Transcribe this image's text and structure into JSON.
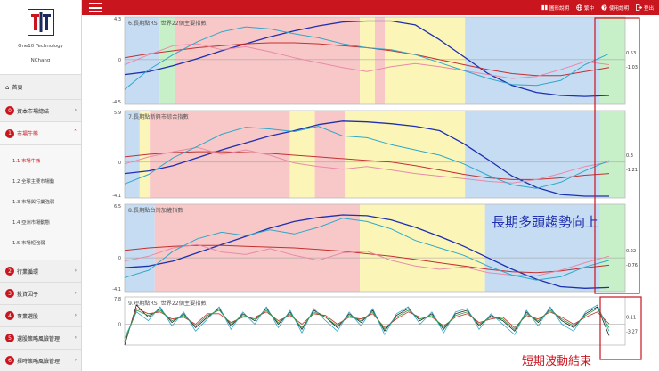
{
  "sidebar": {
    "brand": "One10 Technology",
    "user": "NChang",
    "home": "首頁",
    "items": [
      {
        "num": "0",
        "label": "資本市場總結",
        "chev": "›"
      },
      {
        "num": "1",
        "label": "市場牛熊",
        "chev": "˄"
      },
      {
        "num": "2",
        "label": "行業循環",
        "chev": "›"
      },
      {
        "num": "3",
        "label": "投資因子",
        "chev": "›"
      },
      {
        "num": "4",
        "label": "專業選股",
        "chev": "›"
      },
      {
        "num": "5",
        "label": "選股策略風險管理",
        "chev": "›"
      },
      {
        "num": "6",
        "label": "擇時策略風險管理",
        "chev": "›"
      }
    ],
    "sub_items": [
      "1.1 市場牛熊",
      "1.2 全球主要市場動",
      "1.3 市場與行業強弱",
      "1.4 亞洲市場動態",
      "1.5 市場短強弱"
    ]
  },
  "topbar": {
    "links": [
      "圖形說明",
      "繁中",
      "使用說明",
      "登出"
    ]
  },
  "annotations": {
    "long_term": "長期多頭趨勢向上",
    "short_term": "短期波動結束"
  },
  "colors": {
    "accent": "#c9151e",
    "zone_red": "#f8c8c8",
    "zone_yellow": "#fbf6b8",
    "zone_green": "#c8f0c8",
    "zone_blue": "#c6dcf2",
    "line_blue": "#1f2fb0",
    "line_red": "#c43030",
    "line_pink": "#e88aa8",
    "line_cyan": "#2fa8c8"
  },
  "chart_data": [
    {
      "type": "line",
      "title": "6.長期點RST世界22個主要指數",
      "ylim": [
        -4.5,
        4.3
      ],
      "ytick_labels": [
        "4.3",
        "0",
        "-4.5"
      ],
      "end_labels": [
        "0.53",
        "-1.03"
      ],
      "zones": [
        {
          "x0": 0,
          "x1": 0.07,
          "color": "blue"
        },
        {
          "x0": 0.07,
          "x1": 0.1,
          "color": "green"
        },
        {
          "x0": 0.1,
          "x1": 0.47,
          "color": "red"
        },
        {
          "x0": 0.47,
          "x1": 0.5,
          "color": "yellow"
        },
        {
          "x0": 0.5,
          "x1": 0.52,
          "color": "red"
        },
        {
          "x0": 0.52,
          "x1": 0.68,
          "color": "yellow"
        },
        {
          "x0": 0.68,
          "x1": 0.95,
          "color": "blue"
        },
        {
          "x0": 0.95,
          "x1": 1.0,
          "color": "green"
        }
      ],
      "series": [
        {
          "color": "blue",
          "values": [
            -1.5,
            -1.2,
            -0.6,
            0.1,
            0.9,
            1.6,
            2.3,
            2.9,
            3.4,
            3.8,
            3.9,
            3.9,
            3.5,
            2.0,
            0.3,
            -1.4,
            -2.6,
            -3.3,
            -3.6,
            -3.7,
            -3.6
          ]
        },
        {
          "color": "red",
          "values": [
            0.2,
            0.6,
            0.9,
            1.2,
            1.4,
            1.6,
            1.7,
            1.7,
            1.6,
            1.4,
            1.2,
            0.9,
            0.5,
            0.0,
            -0.5,
            -1.0,
            -1.4,
            -1.6,
            -1.6,
            -1.2,
            -0.8
          ]
        },
        {
          "color": "pink",
          "values": [
            -0.5,
            0.5,
            1.4,
            1.6,
            1.0,
            1.3,
            0.8,
            0.2,
            -0.3,
            -0.8,
            -1.2,
            -0.7,
            -0.4,
            -0.7,
            -1.1,
            -1.5,
            -1.9,
            -1.7,
            -1.0,
            -0.2,
            -0.5
          ]
        },
        {
          "color": "cyan",
          "values": [
            -3.0,
            -1.0,
            0.5,
            1.8,
            2.8,
            3.3,
            3.1,
            2.6,
            2.2,
            1.6,
            1.2,
            1.0,
            0.5,
            -0.3,
            -1.1,
            -1.9,
            -2.5,
            -2.6,
            -2.1,
            -0.5,
            0.6
          ]
        }
      ]
    },
    {
      "type": "line",
      "title": "7.長期點新興市綜合指數",
      "ylim": [
        -4.1,
        5.9
      ],
      "ytick_labels": [
        "5.9",
        "0",
        "-4.1"
      ],
      "end_labels": [
        "0.3",
        "-1.21"
      ],
      "zones": [
        {
          "x0": 0,
          "x1": 0.03,
          "color": "blue"
        },
        {
          "x0": 0.03,
          "x1": 0.05,
          "color": "yellow"
        },
        {
          "x0": 0.05,
          "x1": 0.33,
          "color": "red"
        },
        {
          "x0": 0.33,
          "x1": 0.38,
          "color": "yellow"
        },
        {
          "x0": 0.38,
          "x1": 0.44,
          "color": "red"
        },
        {
          "x0": 0.44,
          "x1": 0.68,
          "color": "yellow"
        },
        {
          "x0": 0.68,
          "x1": 0.95,
          "color": "blue"
        },
        {
          "x0": 0.95,
          "x1": 1.0,
          "color": "green"
        }
      ],
      "series": [
        {
          "color": "blue",
          "values": [
            -1.3,
            -1.0,
            -0.4,
            0.5,
            1.4,
            2.2,
            3.0,
            3.6,
            4.3,
            4.7,
            4.6,
            4.4,
            4.1,
            3.6,
            2.1,
            0.3,
            -1.6,
            -2.9,
            -3.7,
            -3.9,
            -3.9
          ]
        },
        {
          "color": "red",
          "values": [
            0.6,
            0.9,
            1.1,
            1.2,
            1.2,
            1.1,
            1.0,
            0.8,
            0.6,
            0.4,
            0.2,
            0.0,
            -0.4,
            -0.9,
            -1.4,
            -1.8,
            -2.0,
            -2.0,
            -1.8,
            -1.5,
            -1.3
          ]
        },
        {
          "color": "pink",
          "values": [
            -0.2,
            0.6,
            1.2,
            1.7,
            0.9,
            1.4,
            0.8,
            -0.1,
            -0.5,
            -0.8,
            -0.5,
            -0.9,
            -1.3,
            -1.6,
            -1.9,
            -2.2,
            -2.4,
            -2.0,
            -1.3,
            -0.5,
            0.0
          ]
        },
        {
          "color": "cyan",
          "values": [
            -2.5,
            -1.4,
            0.5,
            1.8,
            3.2,
            4.0,
            3.8,
            3.5,
            4.1,
            3.0,
            2.8,
            2.0,
            1.4,
            0.8,
            -0.2,
            -1.5,
            -2.6,
            -3.0,
            -2.3,
            -1.0,
            0.2
          ]
        }
      ]
    },
    {
      "type": "line",
      "title": "8.長期點台灣加權指數",
      "ylim": [
        -4.1,
        6.5
      ],
      "ytick_labels": [
        "6.5",
        "0",
        "-4.1"
      ],
      "end_labels": [
        "0.22",
        "-0.76"
      ],
      "zones": [
        {
          "x0": 0,
          "x1": 0.06,
          "color": "blue"
        },
        {
          "x0": 0.06,
          "x1": 0.47,
          "color": "red"
        },
        {
          "x0": 0.47,
          "x1": 0.72,
          "color": "yellow"
        },
        {
          "x0": 0.72,
          "x1": 0.95,
          "color": "blue"
        },
        {
          "x0": 0.95,
          "x1": 1.0,
          "color": "green"
        }
      ],
      "series": [
        {
          "color": "blue",
          "values": [
            -1.2,
            -1.0,
            -0.4,
            0.6,
            1.6,
            2.6,
            3.6,
            4.4,
            4.9,
            5.2,
            5.1,
            4.6,
            3.7,
            2.6,
            1.4,
            0.0,
            -1.4,
            -2.6,
            -3.5,
            -3.7,
            -3.6
          ]
        },
        {
          "color": "red",
          "values": [
            0.9,
            1.2,
            1.4,
            1.5,
            1.5,
            1.4,
            1.3,
            1.2,
            1.0,
            0.8,
            0.5,
            0.2,
            -0.2,
            -0.6,
            -1.0,
            -1.4,
            -1.7,
            -1.8,
            -1.6,
            -1.2,
            -0.9
          ]
        },
        {
          "color": "pink",
          "values": [
            -0.4,
            0.2,
            1.2,
            1.6,
            0.7,
            0.4,
            1.1,
            0.3,
            -0.3,
            0.6,
            0.8,
            -0.3,
            -1.0,
            -1.4,
            -1.1,
            -1.8,
            -2.1,
            -2.2,
            -1.5,
            -0.6,
            0.2
          ]
        },
        {
          "color": "cyan",
          "values": [
            -2.4,
            -1.5,
            0.8,
            2.3,
            3.1,
            2.7,
            3.4,
            2.9,
            3.7,
            4.8,
            4.4,
            3.5,
            2.1,
            1.2,
            0.3,
            -1.0,
            -2.1,
            -2.7,
            -2.3,
            -1.1,
            -0.3
          ]
        }
      ]
    },
    {
      "type": "line",
      "title": "9.短期點RST世界22個主要指數",
      "ylim": [
        -6.0,
        7.8
      ],
      "ytick_labels": [
        "7.8",
        "0"
      ],
      "end_labels": [
        "0.11",
        "-3.27"
      ],
      "series": [
        {
          "color": "black",
          "values": [
            -6,
            5.5,
            2.0,
            4.5,
            0.5,
            3.0,
            -1.0,
            2.0,
            4.5,
            -0.5,
            3.0,
            1.0,
            4.5,
            0.0,
            3.5,
            -1.5,
            4.0,
            2.0,
            -1.0,
            3.0,
            0.5,
            4.0,
            -2.0,
            2.5,
            4.5,
            1.0,
            3.0,
            -1.5,
            3.0,
            4.0,
            -0.5,
            2.5,
            1.0,
            -2.0,
            3.5,
            0.5,
            4.5,
            1.0,
            -1.0,
            3.0,
            5.0,
            -3.3
          ]
        },
        {
          "color": "red",
          "values": [
            -5,
            4.5,
            3.0,
            3.5,
            1.5,
            2.0,
            0.0,
            3.0,
            3.0,
            0.5,
            2.0,
            2.0,
            3.5,
            1.0,
            2.5,
            0.0,
            3.0,
            2.5,
            0.0,
            2.0,
            1.5,
            3.0,
            -1.0,
            1.5,
            3.5,
            2.0,
            2.0,
            -0.5,
            2.0,
            3.0,
            0.5,
            1.5,
            2.0,
            -1.0,
            2.5,
            1.5,
            3.5,
            2.0,
            0.0,
            2.0,
            3.5,
            0.1
          ]
        },
        {
          "color": "cyan",
          "values": [
            -4,
            3.5,
            1.0,
            5.0,
            -0.5,
            3.5,
            -2.0,
            1.5,
            5.0,
            -1.5,
            3.5,
            0.0,
            5.0,
            -1.0,
            4.0,
            -2.5,
            4.5,
            1.0,
            -2.0,
            3.5,
            -0.5,
            4.5,
            -3.0,
            3.0,
            5.0,
            0.0,
            3.5,
            -2.5,
            3.5,
            4.5,
            -1.5,
            3.0,
            0.0,
            -3.0,
            4.0,
            -0.5,
            5.0,
            0.0,
            -2.0,
            3.5,
            5.5,
            -2.0
          ]
        },
        {
          "color": "green",
          "values": [
            -5,
            4.0,
            2.5,
            4.0,
            1.0,
            2.5,
            -0.5,
            2.5,
            4.0,
            0.0,
            2.5,
            1.5,
            4.0,
            0.5,
            3.0,
            -1.0,
            3.5,
            2.0,
            -0.5,
            2.5,
            1.0,
            3.5,
            -1.5,
            2.0,
            4.0,
            1.5,
            2.5,
            -1.0,
            2.5,
            3.5,
            0.0,
            2.0,
            1.5,
            -1.5,
            3.0,
            1.0,
            4.0,
            1.5,
            -0.5,
            2.5,
            4.5,
            -1.0
          ]
        }
      ]
    }
  ]
}
